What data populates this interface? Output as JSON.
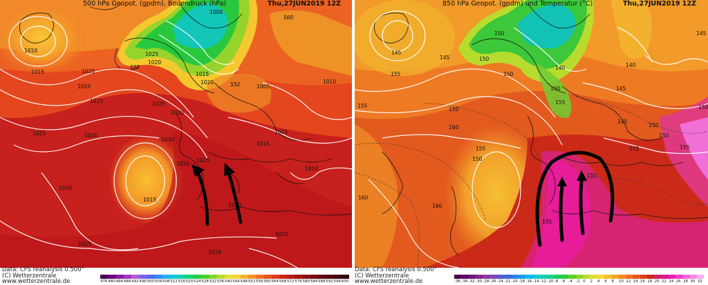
{
  "left_panel": {
    "title": "500 hPa Geopot. (gpdm), Bodendruck (hPa)",
    "time": "Thu,27JUN2019  12Z",
    "isobar_labels": [
      "1000",
      "1010",
      "1015",
      "1025",
      "1020",
      "1025",
      "1020",
      "1015",
      "1020",
      "1015",
      "1005",
      "1010",
      "1025",
      "1030",
      "1030",
      "1020",
      "1025",
      "1015",
      "1010",
      "1030",
      "1015",
      "1025",
      "1015",
      "1010",
      "1010",
      "1015"
    ],
    "geopot_labels": [
      "552",
      "552",
      "560"
    ]
  },
  "right_panel": {
    "title": "850 hPa Geopot. (gpdm) und Temperatur (°C)",
    "time": "Thu,27JUN2019  12Z",
    "geopot_labels": [
      "145",
      "155",
      "155",
      "145",
      "150",
      "150",
      "150",
      "140",
      "145",
      "140",
      "145",
      "150",
      "155",
      "160",
      "155",
      "150",
      "150",
      "145",
      "150",
      "155",
      "150",
      "160",
      "160",
      "155",
      "155",
      "150",
      "155",
      "160",
      "160",
      "155"
    ]
  },
  "footer": {
    "source_line": "Data: CFS reanalysis 0.500°",
    "copyright_line": "(C) Wetterzentrale",
    "url_line": "www.wetterzentrale.de"
  },
  "legend_left": {
    "labels": [
      "476",
      "480",
      "484",
      "488",
      "492",
      "496",
      "500",
      "504",
      "508",
      "512",
      "516",
      "520",
      "524",
      "528",
      "532",
      "536",
      "540",
      "544",
      "548",
      "552",
      "556",
      "560",
      "564",
      "568",
      "572",
      "576",
      "580",
      "584",
      "588",
      "592",
      "596",
      "600"
    ],
    "colors": [
      "#4b0050",
      "#6a007a",
      "#8a1aa0",
      "#a238c0",
      "#b45ad8",
      "#7a64e6",
      "#4a6af0",
      "#2d8cf5",
      "#1fb0f0",
      "#12c8d8",
      "#0ed2a6",
      "#14d36a",
      "#22cc3a",
      "#4ed02a",
      "#84d62c",
      "#b8dc2e",
      "#e2e032",
      "#f6d232",
      "#f6b22e",
      "#f4922a",
      "#f27024",
      "#ec5220",
      "#e0381c",
      "#cc2618",
      "#b81a16",
      "#a01414",
      "#8a1012",
      "#760c10",
      "#640a10",
      "#520810",
      "#42060e",
      "#34040c"
    ]
  },
  "legend_right": {
    "labels": [
      "-36",
      "-34",
      "-32",
      "-30",
      "-28",
      "-26",
      "-24",
      "-22",
      "-20",
      "-18",
      "-16",
      "-14",
      "-12",
      "-10",
      "-8",
      "-6",
      "-4",
      "-2",
      "0",
      "2",
      "4",
      "6",
      "8",
      "10",
      "12",
      "14",
      "16",
      "18",
      "20",
      "22",
      "24",
      "26",
      "28",
      "30",
      "32"
    ],
    "colors": [
      "#4b0050",
      "#5c0a64",
      "#6e1878",
      "#80288c",
      "#9038a0",
      "#7a48b8",
      "#5c58cc",
      "#3c6ad8",
      "#2a82e4",
      "#1c9cec",
      "#14b6ec",
      "#12c8d8",
      "#14d0b0",
      "#18d088",
      "#1ecc5c",
      "#30c838",
      "#5ad02a",
      "#8ad62c",
      "#b8dc2e",
      "#e0e032",
      "#f6d830",
      "#f6c02c",
      "#f4a428",
      "#f28a24",
      "#ee7020",
      "#e6561c",
      "#da3e1a",
      "#c82818",
      "#d0206a",
      "#e01890",
      "#ec20b4",
      "#f040cc",
      "#f464dc",
      "#f68ae6",
      "#f8aeee"
    ]
  }
}
